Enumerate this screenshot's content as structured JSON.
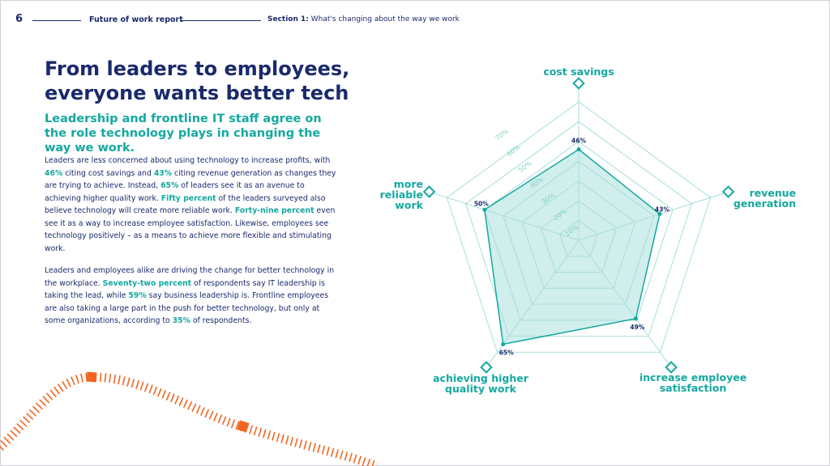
{
  "header": {
    "page_number": "6",
    "report_title": "Future of work report",
    "section_label": "Section 1:",
    "section_title": "What's changing about the way we work"
  },
  "title": "From leaders to employees, everyone wants better tech",
  "subtitle": "Leadership and frontline IT staff agree on the role technology plays in changing the way we work.",
  "paragraph1": [
    {
      "t": "Leaders are less concerned about using technology to increase profits, with "
    },
    {
      "t": "46%",
      "h": true
    },
    {
      "t": " citing cost savings and "
    },
    {
      "t": "43%",
      "h": true
    },
    {
      "t": " citing revenue generation as changes they are trying to achieve. Instead, "
    },
    {
      "t": "65%",
      "h": true
    },
    {
      "t": " of leaders see it as an avenue to achieving higher quality work. "
    },
    {
      "t": "Fifty percent",
      "h": true
    },
    {
      "t": " of the leaders surveyed also believe technology will create more reliable work. "
    },
    {
      "t": "Forty-nine percent",
      "h": true
    },
    {
      "t": " even see it as a way to increase employee satisfaction. Likewise, employees see technology positively – as a means to achieve more flexible and stimulating work."
    }
  ],
  "paragraph2": [
    {
      "t": "Leaders and employees alike are driving the change for better technology in the workplace. "
    },
    {
      "t": "Seventy-two percent",
      "h": true
    },
    {
      "t": " of respondents say IT leadership is taking the lead, while "
    },
    {
      "t": "59%",
      "h": true
    },
    {
      "t": " say business leadership is. Frontline employees are also taking a large part in the push for better technology, but only at some organizations, according to "
    },
    {
      "t": "35%",
      "h": true
    },
    {
      "t": " of respondents."
    }
  ],
  "colors": {
    "navy": "#1a2a6c",
    "teal": "#14a8a0",
    "grid": "#a6dfd8",
    "accent_orange": "#f26522"
  },
  "chart_data": {
    "type": "radar",
    "categories": [
      [
        "cost savings"
      ],
      [
        "revenue",
        "generation"
      ],
      [
        "increase employee",
        "satisfaction"
      ],
      [
        "achieving higher",
        "quality work"
      ],
      [
        "more",
        "reliable",
        "work"
      ]
    ],
    "values": [
      46,
      43,
      49,
      65,
      50
    ],
    "value_labels": [
      "46%",
      "43%",
      "49%",
      "65%",
      "50%"
    ],
    "rlim": [
      0,
      70
    ],
    "ticks": [
      "10%",
      "20%",
      "30%",
      "40%",
      "50%",
      "60%",
      "70%"
    ],
    "grid": true
  }
}
